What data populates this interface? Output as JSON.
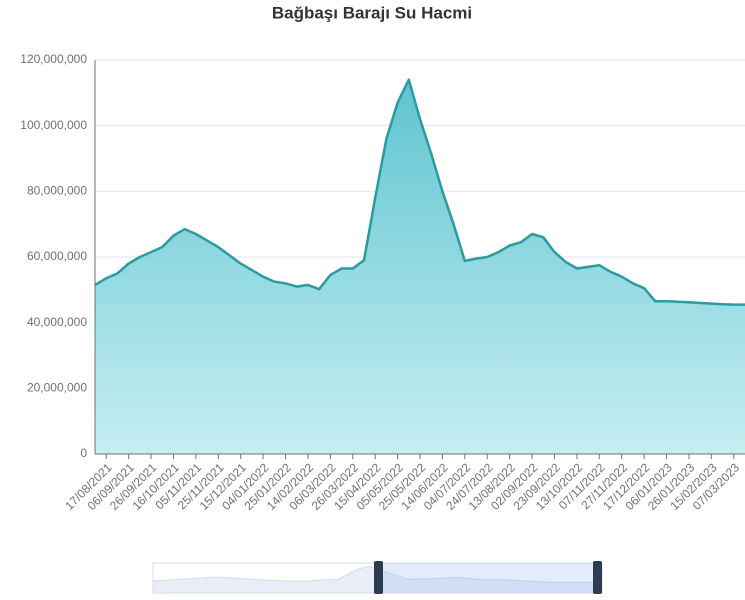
{
  "chart_data": {
    "type": "area",
    "title": "Bağbaşı Barajı Su Hacmi",
    "categories": [
      null,
      "17/08/2021",
      null,
      "06/09/2021",
      null,
      "26/09/2021",
      null,
      "16/10/2021",
      null,
      "05/11/2021",
      null,
      "25/11/2021",
      null,
      "15/12/2021",
      null,
      "04/01/2022",
      null,
      "25/01/2022",
      null,
      "14/02/2022",
      null,
      "06/03/2022",
      null,
      "26/03/2022",
      null,
      "15/04/2022",
      null,
      "05/05/2022",
      null,
      "25/05/2022",
      null,
      "14/06/2022",
      null,
      "04/07/2022",
      null,
      "24/07/2022",
      null,
      "13/08/2022",
      null,
      "02/09/2022",
      null,
      "23/09/2022",
      null,
      "13/10/2022",
      null,
      "07/11/2022",
      null,
      "27/11/2022",
      null,
      "17/12/2022",
      null,
      "06/01/2023",
      null,
      "26/01/2023",
      null,
      "15/02/2023",
      null,
      "07/03/2023",
      null
    ],
    "values": [
      51500000,
      53500000,
      55000000,
      58000000,
      60000000,
      61500000,
      63000000,
      66500000,
      68500000,
      67000000,
      65000000,
      63000000,
      60500000,
      58000000,
      56000000,
      54000000,
      52500000,
      52000000,
      51000000,
      51500000,
      50200000,
      54500000,
      56500000,
      56500000,
      59000000,
      78000000,
      96000000,
      107000000,
      114000000,
      102000000,
      91500000,
      80000000,
      70000000,
      58800000,
      59500000,
      60000000,
      61500000,
      63500000,
      64500000,
      67000000,
      66000000,
      61500000,
      58500000,
      56500000,
      57000000,
      57500000,
      55500000,
      54000000,
      52000000,
      50500000,
      46500000,
      46500000,
      46400000,
      46200000,
      46000000,
      45800000,
      45600000,
      45500000,
      45500000
    ],
    "color": "#2a9ba1",
    "ylim": [
      0,
      120000000
    ],
    "yticks": [
      0,
      {
        "value": 20000000,
        "label": "20,000,000"
      },
      {
        "value": 40000000,
        "label": "40,000,000"
      },
      {
        "value": 60000000,
        "label": "60,000,000"
      },
      {
        "value": 80000000,
        "label": "80,000,000"
      },
      {
        "value": 100000000,
        "label": "100,000,000"
      },
      {
        "value": 120000000,
        "label": "120,000,000"
      }
    ],
    "grid": true
  }
}
